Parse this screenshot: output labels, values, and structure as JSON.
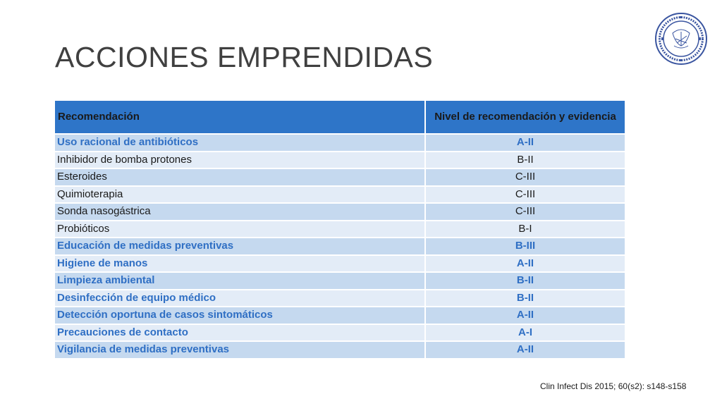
{
  "slide": {
    "title": "ACCIONES EMPRENDIDAS",
    "citation": "Clin Infect Dis 2015; 60(s2): s148-s158"
  },
  "logo": {
    "icon": "institution-seal-icon",
    "text": "INSTITUTO NACIONAL DE CIENCIAS MÉDICAS Y NUTRICIÓN SALVADOR ZUBIRÁN"
  },
  "table": {
    "headers": [
      "Recomendación",
      "Nivel de recomendación y evidencia"
    ],
    "rows": [
      {
        "recommendation": "Uso racional de antibióticos",
        "level": "A-II",
        "highlight": true
      },
      {
        "recommendation": "Inhibidor de bomba protones",
        "level": "B-II",
        "highlight": false
      },
      {
        "recommendation": "Esteroides",
        "level": "C-III",
        "highlight": false
      },
      {
        "recommendation": "Quimioterapia",
        "level": "C-III",
        "highlight": false
      },
      {
        "recommendation": "Sonda nasogástrica",
        "level": "C-III",
        "highlight": false
      },
      {
        "recommendation": "Probióticos",
        "level": "B-I",
        "highlight": false
      },
      {
        "recommendation": "Educación de medidas preventivas",
        "level": "B-III",
        "highlight": true
      },
      {
        "recommendation": "Higiene de manos",
        "level": "A-II",
        "highlight": true
      },
      {
        "recommendation": "Limpieza ambiental",
        "level": "B-II",
        "highlight": true
      },
      {
        "recommendation": "Desinfección de equipo médico",
        "level": "B-II",
        "highlight": true
      },
      {
        "recommendation": "Detección oportuna de casos sintomáticos",
        "level": "A-II",
        "highlight": true
      },
      {
        "recommendation": "Precauciones de contacto",
        "level": "A-I",
        "highlight": true
      },
      {
        "recommendation": "Vigilancia de medidas preventivas",
        "level": "A-II",
        "highlight": true
      }
    ]
  },
  "colors": {
    "header_bg": "#2e75c8",
    "row_band_dark": "#c5d9ef",
    "row_band_light": "#e3ecf7",
    "highlight_text": "#2f6fc4"
  }
}
